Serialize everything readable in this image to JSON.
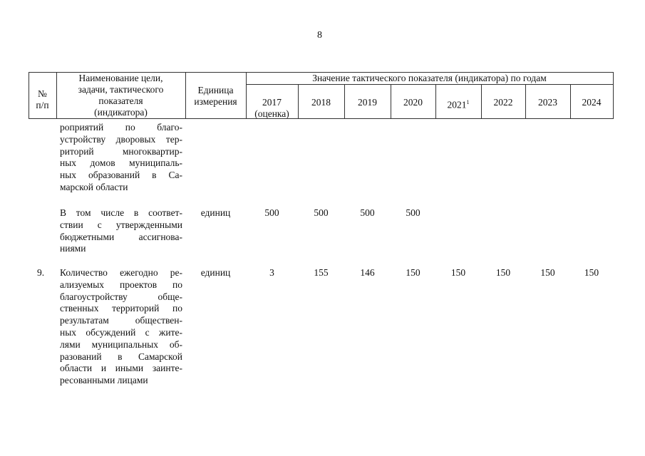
{
  "page_number": "8",
  "header": {
    "num": [
      "№",
      "п/п"
    ],
    "name": [
      "Наименование цели,",
      "задачи, тактического",
      "показателя",
      "(индикатора)"
    ],
    "unit": [
      "Единица",
      "измерения"
    ],
    "group": "Значение тактического показателя (индикатора) по годам",
    "years": [
      "2017",
      "2018",
      "2019",
      "2020",
      "2021",
      "2022",
      "2023",
      "2024"
    ],
    "year_2017_note": "(оценка)",
    "footnote_mark": "1"
  },
  "rows": [
    {
      "num": "",
      "lines": [
        "ропри­ятий по благо-",
        "устройству дворовых тер-",
        "риторий многоквартир-",
        "ных домов муниципаль-",
        "ных образований в Са-",
        "марской области"
      ],
      "unit": "",
      "values": [
        "",
        "",
        "",
        "",
        "",
        "",
        "",
        ""
      ]
    },
    {
      "num": "",
      "lines": [
        "В том числе в соответ-",
        "ствии с утвержденными",
        "бюджетными ассигнова-",
        "ниями"
      ],
      "unit": "единиц",
      "values": [
        "500",
        "500",
        "500",
        "500",
        "",
        "",
        "",
        ""
      ]
    },
    {
      "num": "9.",
      "lines": [
        "Количество ежегодно ре-",
        "ализуемых проектов по",
        "благоустройству обще-",
        "ственных территорий по",
        "результатам обществен-",
        "ных обсуждений с жите-",
        "лями муниципальных об-",
        "разований в Самарской",
        "области и иными заинте-",
        "ресованными лицами"
      ],
      "unit": "единиц",
      "values": [
        "3",
        "155",
        "146",
        "150",
        "150",
        "150",
        "150",
        "150"
      ]
    }
  ]
}
